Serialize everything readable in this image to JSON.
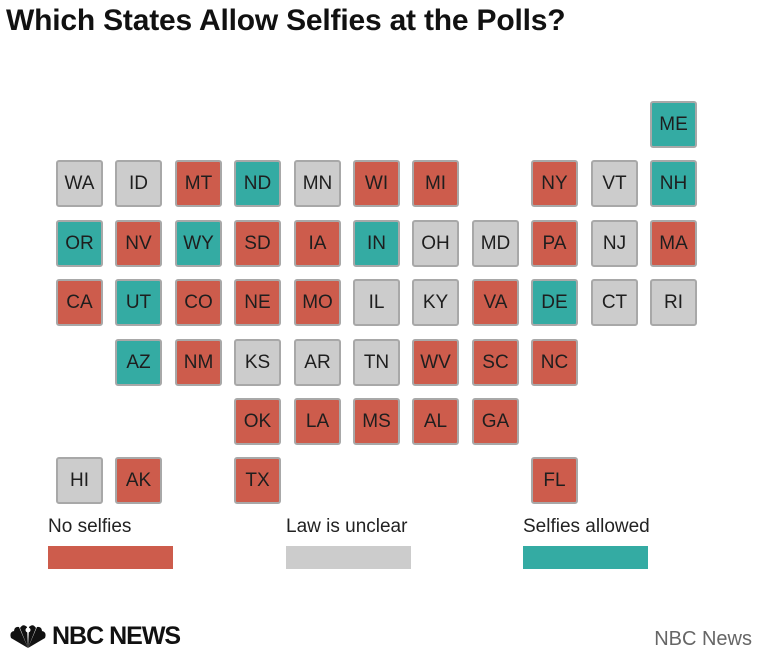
{
  "title": "Which States Allow Selfies at the Polls?",
  "colors": {
    "no": "#cd5c4c",
    "unclear": "#cccccc",
    "allowed": "#34aba3"
  },
  "states": [
    {
      "code": "ME",
      "status": "allowed",
      "col": 10,
      "row": 0
    },
    {
      "code": "WA",
      "status": "unclear",
      "col": 0,
      "row": 1
    },
    {
      "code": "ID",
      "status": "unclear",
      "col": 1,
      "row": 1
    },
    {
      "code": "MT",
      "status": "no",
      "col": 2,
      "row": 1
    },
    {
      "code": "ND",
      "status": "allowed",
      "col": 3,
      "row": 1
    },
    {
      "code": "MN",
      "status": "unclear",
      "col": 4,
      "row": 1
    },
    {
      "code": "WI",
      "status": "no",
      "col": 5,
      "row": 1
    },
    {
      "code": "MI",
      "status": "no",
      "col": 6,
      "row": 1
    },
    {
      "code": "NY",
      "status": "no",
      "col": 8,
      "row": 1
    },
    {
      "code": "VT",
      "status": "unclear",
      "col": 9,
      "row": 1
    },
    {
      "code": "NH",
      "status": "allowed",
      "col": 10,
      "row": 1
    },
    {
      "code": "OR",
      "status": "allowed",
      "col": 0,
      "row": 2
    },
    {
      "code": "NV",
      "status": "no",
      "col": 1,
      "row": 2
    },
    {
      "code": "WY",
      "status": "allowed",
      "col": 2,
      "row": 2
    },
    {
      "code": "SD",
      "status": "no",
      "col": 3,
      "row": 2
    },
    {
      "code": "IA",
      "status": "no",
      "col": 4,
      "row": 2
    },
    {
      "code": "IN",
      "status": "allowed",
      "col": 5,
      "row": 2
    },
    {
      "code": "OH",
      "status": "unclear",
      "col": 6,
      "row": 2
    },
    {
      "code": "MD",
      "status": "unclear",
      "col": 7,
      "row": 2
    },
    {
      "code": "PA",
      "status": "no",
      "col": 8,
      "row": 2
    },
    {
      "code": "NJ",
      "status": "unclear",
      "col": 9,
      "row": 2
    },
    {
      "code": "MA",
      "status": "no",
      "col": 10,
      "row": 2
    },
    {
      "code": "CA",
      "status": "no",
      "col": 0,
      "row": 3
    },
    {
      "code": "UT",
      "status": "allowed",
      "col": 1,
      "row": 3
    },
    {
      "code": "CO",
      "status": "no",
      "col": 2,
      "row": 3
    },
    {
      "code": "NE",
      "status": "no",
      "col": 3,
      "row": 3
    },
    {
      "code": "MO",
      "status": "no",
      "col": 4,
      "row": 3
    },
    {
      "code": "IL",
      "status": "unclear",
      "col": 5,
      "row": 3
    },
    {
      "code": "KY",
      "status": "unclear",
      "col": 6,
      "row": 3
    },
    {
      "code": "VA",
      "status": "no",
      "col": 7,
      "row": 3
    },
    {
      "code": "DE",
      "status": "allowed",
      "col": 8,
      "row": 3
    },
    {
      "code": "CT",
      "status": "unclear",
      "col": 9,
      "row": 3
    },
    {
      "code": "RI",
      "status": "unclear",
      "col": 10,
      "row": 3
    },
    {
      "code": "AZ",
      "status": "allowed",
      "col": 1,
      "row": 4
    },
    {
      "code": "NM",
      "status": "no",
      "col": 2,
      "row": 4
    },
    {
      "code": "KS",
      "status": "unclear",
      "col": 3,
      "row": 4
    },
    {
      "code": "AR",
      "status": "unclear",
      "col": 4,
      "row": 4
    },
    {
      "code": "TN",
      "status": "unclear",
      "col": 5,
      "row": 4
    },
    {
      "code": "WV",
      "status": "no",
      "col": 6,
      "row": 4
    },
    {
      "code": "SC",
      "status": "no",
      "col": 7,
      "row": 4
    },
    {
      "code": "NC",
      "status": "no",
      "col": 8,
      "row": 4
    },
    {
      "code": "OK",
      "status": "no",
      "col": 3,
      "row": 5
    },
    {
      "code": "LA",
      "status": "no",
      "col": 4,
      "row": 5
    },
    {
      "code": "MS",
      "status": "no",
      "col": 5,
      "row": 5
    },
    {
      "code": "AL",
      "status": "no",
      "col": 6,
      "row": 5
    },
    {
      "code": "GA",
      "status": "no",
      "col": 7,
      "row": 5
    },
    {
      "code": "HI",
      "status": "unclear",
      "col": 0,
      "row": 6
    },
    {
      "code": "AK",
      "status": "no",
      "col": 1,
      "row": 6
    },
    {
      "code": "TX",
      "status": "no",
      "col": 3,
      "row": 6
    },
    {
      "code": "FL",
      "status": "no",
      "col": 8,
      "row": 6
    }
  ],
  "legend": [
    {
      "status": "no",
      "label": "No selfies"
    },
    {
      "status": "unclear",
      "label": "Law is unclear"
    },
    {
      "status": "allowed",
      "label": "Selfies allowed"
    }
  ],
  "footer": {
    "logo_text": "NBC NEWS",
    "logo_icon": "peacock-icon",
    "credit": "NBC News"
  }
}
